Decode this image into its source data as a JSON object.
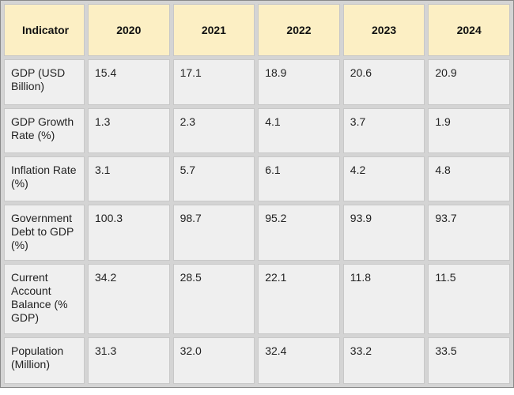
{
  "table": {
    "header": [
      "Indicator",
      "2020",
      "2021",
      "2022",
      "2023",
      "2024"
    ],
    "rows": [
      [
        "GDP (USD Billion)",
        "15.4",
        "17.1",
        "18.9",
        "20.6",
        "20.9"
      ],
      [
        "GDP Growth Rate (%)",
        "1.3",
        "2.3",
        "4.1",
        "3.7",
        "1.9"
      ],
      [
        "Inflation Rate (%)",
        "3.1",
        "5.7",
        "6.1",
        "4.2",
        "4.8"
      ],
      [
        "Government Debt to GDP (%)",
        "100.3",
        "98.7",
        "95.2",
        "93.9",
        "93.7"
      ],
      [
        "Current Account Balance (% GDP)",
        "34.2",
        "28.5",
        "22.1",
        "11.8",
        "11.5"
      ],
      [
        "Population (Million)",
        "31.3",
        "32.0",
        "32.4",
        "33.2",
        "33.5"
      ]
    ]
  }
}
